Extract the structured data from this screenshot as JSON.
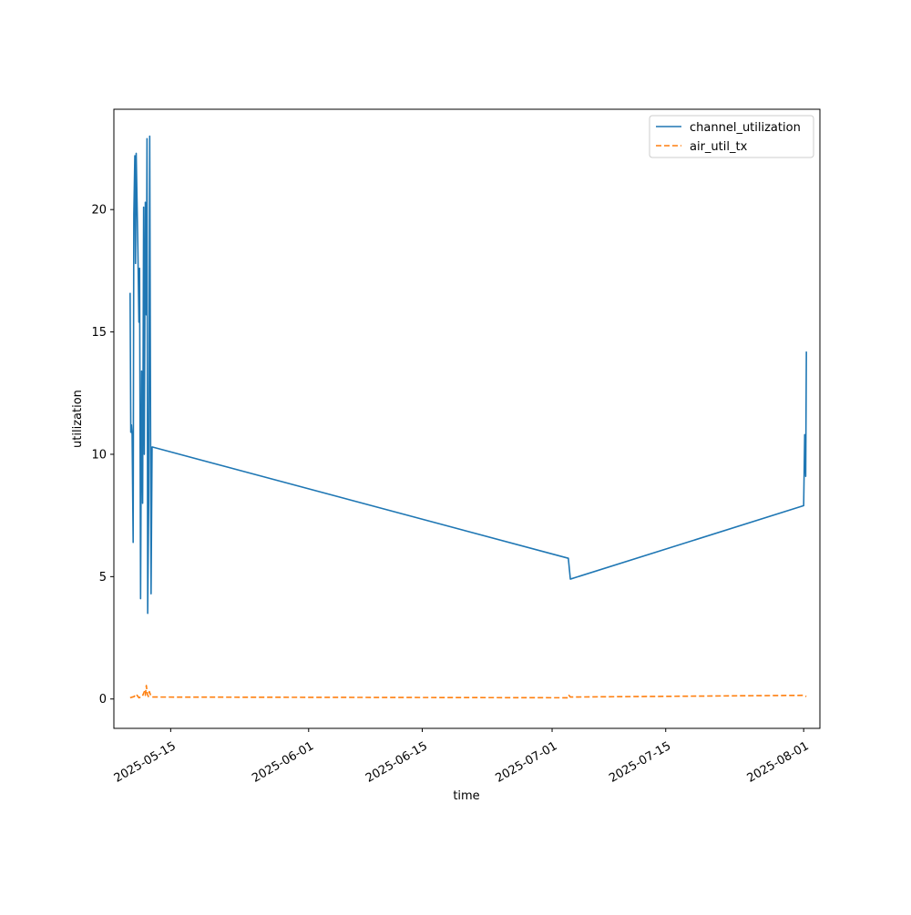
{
  "chart_data": {
    "type": "line",
    "title": "",
    "xlabel": "time",
    "ylabel": "utilization",
    "x_axis_type": "date",
    "xlim": [
      "2025-05-08",
      "2025-08-03"
    ],
    "ylim": [
      -1.2,
      24.1
    ],
    "grid": false,
    "legend_position": "top-right",
    "x_ticks": [
      "2025-05-15",
      "2025-06-01",
      "2025-06-15",
      "2025-07-01",
      "2025-07-15",
      "2025-08-01"
    ],
    "y_ticks": [
      0,
      5,
      10,
      15,
      20
    ],
    "series": [
      {
        "name": "channel_utilization",
        "color": "#1f77b4",
        "line_style": "solid",
        "points": [
          [
            "2025-05-10T00:00",
            16.6
          ],
          [
            "2025-05-10T02:00",
            10.9
          ],
          [
            "2025-05-10T04:00",
            11.2
          ],
          [
            "2025-05-10T06:00",
            10.8
          ],
          [
            "2025-05-10T09:00",
            6.4
          ],
          [
            "2025-05-10T11:00",
            19.8
          ],
          [
            "2025-05-10T14:00",
            22.2
          ],
          [
            "2025-05-10T16:00",
            17.8
          ],
          [
            "2025-05-10T18:00",
            22.3
          ],
          [
            "2025-05-10T23:00",
            18.4
          ],
          [
            "2025-05-11T02:00",
            15.4
          ],
          [
            "2025-05-11T04:00",
            17.6
          ],
          [
            "2025-05-11T07:00",
            4.1
          ],
          [
            "2025-05-11T10:00",
            13.4
          ],
          [
            "2025-05-11T13:00",
            8.0
          ],
          [
            "2025-05-11T16:00",
            20.1
          ],
          [
            "2025-05-11T18:00",
            10.0
          ],
          [
            "2025-05-11T21:00",
            20.3
          ],
          [
            "2025-05-12T00:00",
            15.7
          ],
          [
            "2025-05-12T02:00",
            22.9
          ],
          [
            "2025-05-12T04:00",
            3.5
          ],
          [
            "2025-05-12T07:00",
            8.0
          ],
          [
            "2025-05-12T10:00",
            23.0
          ],
          [
            "2025-05-12T14:00",
            4.3
          ],
          [
            "2025-05-12T17:00",
            10.3
          ],
          [
            "2025-07-03T00:00",
            5.75
          ],
          [
            "2025-07-03T06:00",
            4.9
          ],
          [
            "2025-08-01T00:00",
            7.9
          ],
          [
            "2025-08-01T03:00",
            10.8
          ],
          [
            "2025-08-01T06:00",
            9.1
          ],
          [
            "2025-08-01T08:00",
            14.2
          ]
        ]
      },
      {
        "name": "air_util_tx",
        "color": "#ff7f0e",
        "line_style": "dashed",
        "points": [
          [
            "2025-05-10T00:00",
            0.05
          ],
          [
            "2025-05-10T12:00",
            0.1
          ],
          [
            "2025-05-10T18:00",
            0.2
          ],
          [
            "2025-05-11T02:00",
            0.05
          ],
          [
            "2025-05-11T12:00",
            0.1
          ],
          [
            "2025-05-11T18:00",
            0.3
          ],
          [
            "2025-05-11T21:00",
            0.15
          ],
          [
            "2025-05-12T00:00",
            0.55
          ],
          [
            "2025-05-12T03:00",
            0.2
          ],
          [
            "2025-05-12T06:00",
            0.1
          ],
          [
            "2025-05-12T09:00",
            0.3
          ],
          [
            "2025-05-12T14:00",
            0.1
          ],
          [
            "2025-05-12T17:00",
            0.08
          ],
          [
            "2025-07-03T00:00",
            0.05
          ],
          [
            "2025-07-03T02:00",
            0.15
          ],
          [
            "2025-07-03T06:00",
            0.08
          ],
          [
            "2025-08-01T00:00",
            0.15
          ],
          [
            "2025-08-01T08:00",
            0.1
          ]
        ]
      }
    ]
  }
}
